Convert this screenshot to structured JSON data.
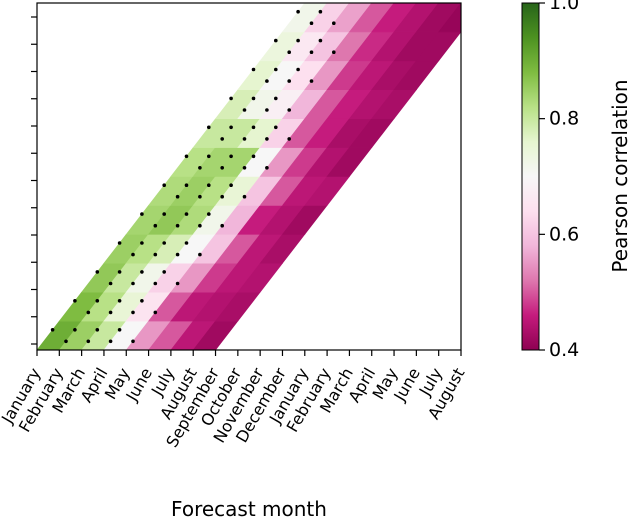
{
  "chart_data": {
    "type": "heatmap",
    "title": "",
    "xlabel": "Forecast month",
    "ylabel": "",
    "x_tick_labels": [
      "January",
      "February",
      "March",
      "April",
      "May",
      "June",
      "July",
      "August",
      "September",
      "October",
      "November",
      "December",
      "January",
      "February",
      "March",
      "April",
      "May",
      "June",
      "July",
      "August"
    ],
    "y_tick_labels": [
      "",
      "",
      "",
      "",
      "",
      "",
      "",
      "",
      "",
      "",
      "",
      "",
      ""
    ],
    "colorbar": {
      "label": "Pearson correlation",
      "vmin": 0.4,
      "vmax": 1.0,
      "ticks": [
        "0.4",
        "0.6",
        "0.8",
        "1.0"
      ],
      "tick_values": [
        0.4,
        0.6,
        0.8,
        1.0
      ],
      "colormap": "PiYG"
    },
    "grid": false,
    "stippling": "black dots mark significant correlations in the early forecast months",
    "correlation_rows": [
      [
        0.9,
        0.85,
        0.8,
        0.7,
        0.55,
        0.5,
        0.45,
        0.42
      ],
      [
        0.88,
        0.82,
        0.75,
        0.65,
        0.5,
        0.45,
        0.44,
        0.43
      ],
      [
        0.86,
        0.8,
        0.72,
        0.62,
        0.55,
        0.48,
        0.45,
        0.44
      ],
      [
        0.85,
        0.82,
        0.78,
        0.7,
        0.6,
        0.5,
        0.45,
        0.43
      ],
      [
        0.84,
        0.86,
        0.83,
        0.72,
        0.58,
        0.46,
        0.44,
        0.42
      ],
      [
        0.83,
        0.85,
        0.82,
        0.75,
        0.6,
        0.5,
        0.45,
        0.44
      ],
      [
        0.82,
        0.84,
        0.84,
        0.7,
        0.55,
        0.48,
        0.44,
        0.42
      ],
      [
        0.8,
        0.8,
        0.76,
        0.62,
        0.5,
        0.46,
        0.43,
        0.42
      ],
      [
        0.78,
        0.72,
        0.68,
        0.58,
        0.5,
        0.46,
        0.44,
        0.43
      ],
      [
        0.76,
        0.7,
        0.64,
        0.55,
        0.48,
        0.45,
        0.43,
        0.42
      ],
      [
        0.74,
        0.66,
        0.6,
        0.52,
        0.47,
        0.44,
        0.42,
        0.42
      ],
      [
        0.72,
        0.62,
        0.56,
        0.5,
        0.46,
        0.44,
        0.42,
        0.41
      ]
    ]
  }
}
